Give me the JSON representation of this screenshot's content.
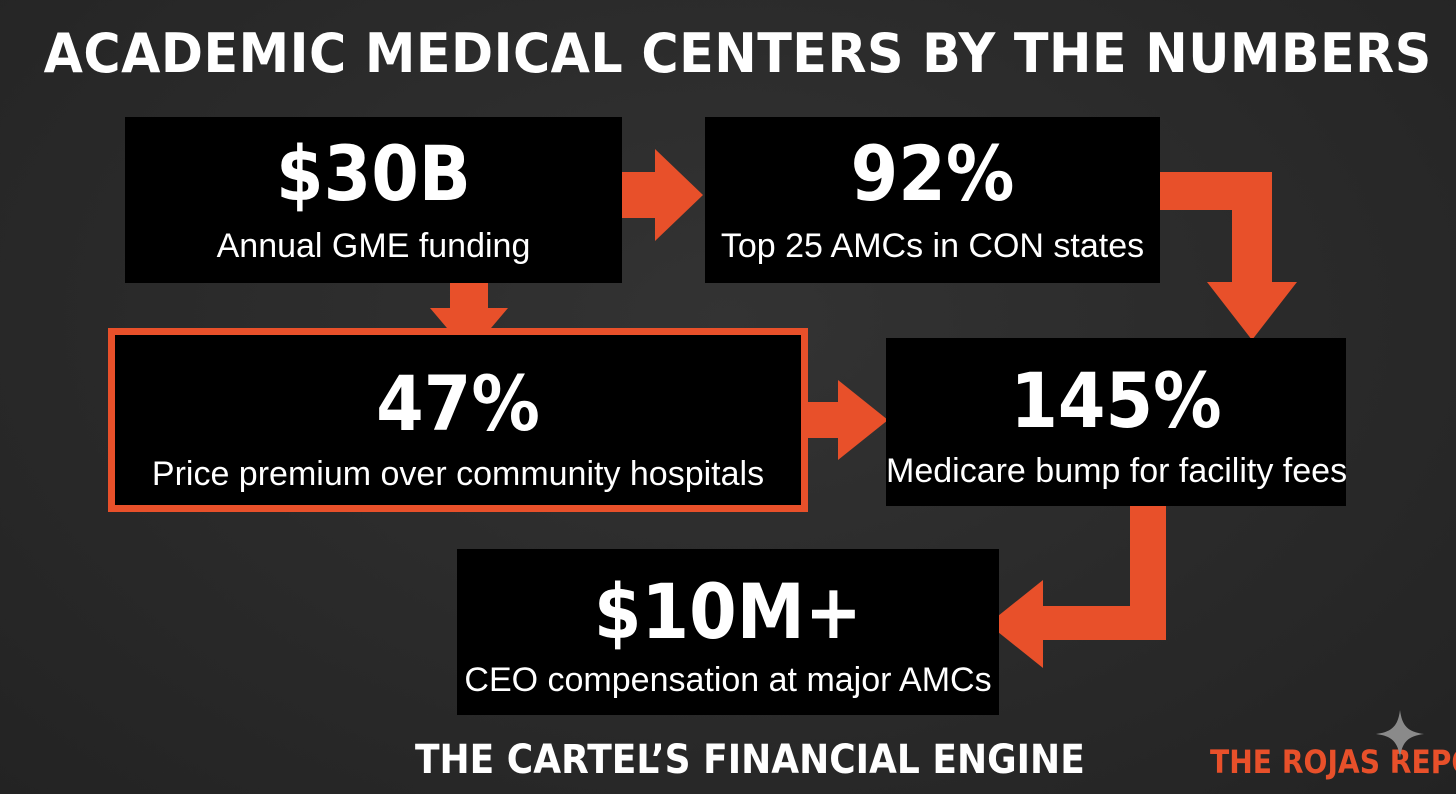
{
  "title": "ACADEMIC MEDICAL CENTERS BY THE NUMBERS",
  "stats": [
    {
      "value": "$30B",
      "label": "Annual GME funding"
    },
    {
      "value": "92%",
      "label": "Top 25 AMCs in CON states"
    },
    {
      "value": "47%",
      "label": "Price premium over community hospitals"
    },
    {
      "value": "145%",
      "label": "Medicare bump for facility fees"
    },
    {
      "value": "$10M+",
      "label": "CEO compensation at major AMCs"
    }
  ],
  "footer": {
    "subtitle": "THE CARTEL’S FINANCIAL ENGINE",
    "brand": "THE ROJAS REPORT"
  },
  "colors": {
    "background": "#2b2b2b",
    "box": "#000000",
    "accent": "#e8502a",
    "text": "#ffffff"
  },
  "icons": {
    "sparkle": "four-point-star-icon"
  }
}
